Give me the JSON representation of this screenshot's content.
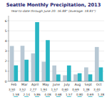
{
  "chart_data": {
    "type": "bar",
    "title": "Seattle Monthly Precipitation, 2013",
    "subtitle": "Year-to-date through June 20: 16.88\" (Average: 18.81\")",
    "categories": [
      "Feb",
      "Mar",
      "April",
      "May",
      "June",
      "July",
      "Aug",
      "Sept",
      "Oct"
    ],
    "series": [
      {
        "color": "#B8C8D4",
        "values": [
          3.5,
          3.52,
          2.77,
          1.94,
          1.57,
          0.6,
          0.688,
          1.38,
          3.4
        ],
        "value_labels": [
          "3.50",
          "3.52",
          "2.77",
          "1.94",
          "1.57",
          "0.60",
          "0.69",
          "1.38",
          "3.40"
        ]
      },
      {
        "color": "#29B5C3",
        "values": [
          1.58,
          2.14,
          5.86,
          4.08,
          0.68,
          1.57,
          0.8,
          0.688,
          1.38
        ],
        "value_labels": [
          "1.58",
          "2.14",
          "5.86",
          "4.08",
          "0.68",
          "1.57",
          "0.80",
          "0.69",
          "1.38"
        ]
      }
    ],
    "ylim": [
      0,
      6.5
    ],
    "yticks": [
      0,
      1,
      2,
      3,
      4,
      5,
      6
    ],
    "grid": true,
    "data_labels": true
  }
}
